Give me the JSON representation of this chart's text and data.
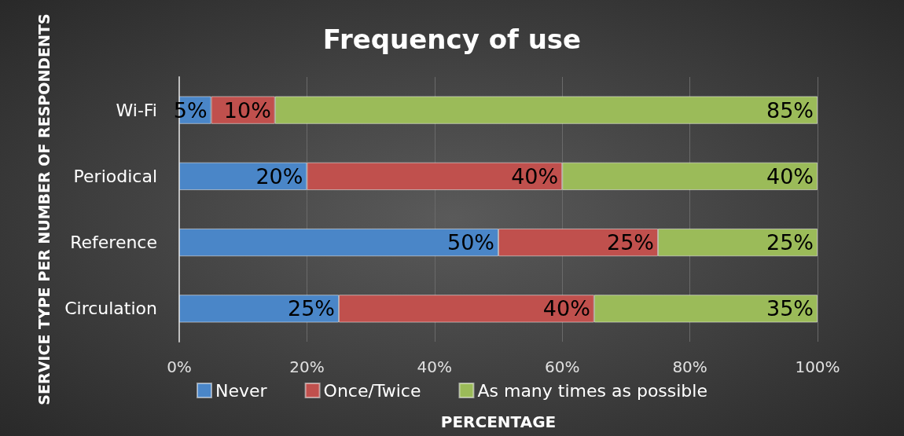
{
  "chart_data": {
    "type": "bar",
    "orientation": "horizontal",
    "stacked": true,
    "title": "Frequency of use",
    "xlabel": "PERCENTAGE",
    "ylabel": "SERVICE TYPE PER NUMBER OF RESPONDENTS",
    "categories": [
      "Wi-Fi",
      "Periodical",
      "Reference",
      "Circulation"
    ],
    "series": [
      {
        "name": "Never",
        "color": "#4a86c8",
        "values": [
          5,
          20,
          50,
          25
        ],
        "value_labels": [
          "5%",
          "20%",
          "50%",
          "25%"
        ]
      },
      {
        "name": "Once/Twice",
        "color": "#c0504d",
        "values": [
          10,
          40,
          25,
          40
        ],
        "value_labels": [
          "10%",
          "40%",
          "25%",
          "40%"
        ]
      },
      {
        "name": "As many times as possible",
        "color": "#9bbb59",
        "values": [
          85,
          40,
          25,
          35
        ],
        "value_labels": [
          "85%",
          "40%",
          "25%",
          "35%"
        ]
      }
    ],
    "xlim": [
      0,
      100
    ],
    "xticks": [
      {
        "value": 0,
        "label": "0%"
      },
      {
        "value": 20,
        "label": "20%"
      },
      {
        "value": 40,
        "label": "40%"
      },
      {
        "value": 60,
        "label": "60%"
      },
      {
        "value": 80,
        "label": "80%"
      },
      {
        "value": 100,
        "label": "100%"
      }
    ],
    "grid": "x",
    "legend": "bottom"
  }
}
